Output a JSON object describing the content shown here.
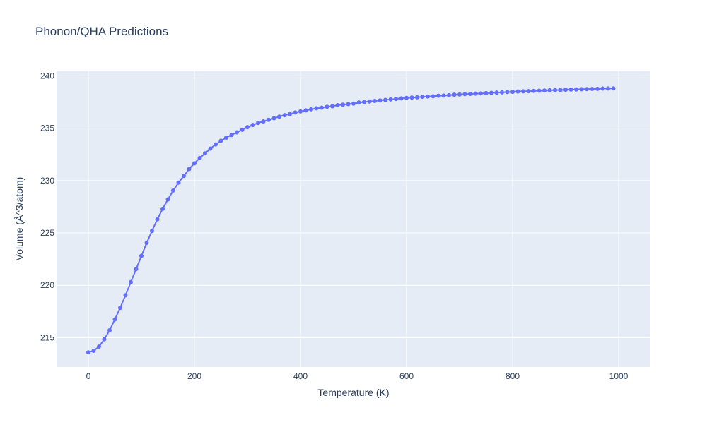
{
  "chart_data": {
    "type": "line",
    "title": "Phonon/QHA Predictions",
    "xlabel": "Temperature (K)",
    "ylabel": "Volume (Å^3/atom)",
    "xlim": [
      -60,
      1060
    ],
    "ylim": [
      212.2,
      240.5
    ],
    "xticks": [
      0,
      200,
      400,
      600,
      800,
      1000
    ],
    "yticks": [
      215,
      220,
      225,
      230,
      235,
      240
    ],
    "grid": true,
    "legend": "none",
    "series": [
      {
        "color": "#636efa",
        "mode": "lines+markers",
        "x": [
          0,
          10,
          20,
          30,
          40,
          50,
          60,
          70,
          80,
          90,
          100,
          110,
          120,
          130,
          140,
          150,
          160,
          170,
          180,
          190,
          200,
          210,
          220,
          230,
          240,
          250,
          260,
          270,
          280,
          290,
          300,
          310,
          320,
          330,
          340,
          350,
          360,
          370,
          380,
          390,
          400,
          410,
          420,
          430,
          440,
          450,
          460,
          470,
          480,
          490,
          500,
          510,
          520,
          530,
          540,
          550,
          560,
          570,
          580,
          590,
          600,
          610,
          620,
          630,
          640,
          650,
          660,
          670,
          680,
          690,
          700,
          710,
          720,
          730,
          740,
          750,
          760,
          770,
          780,
          790,
          800,
          810,
          820,
          830,
          840,
          850,
          860,
          870,
          880,
          890,
          900,
          910,
          920,
          930,
          940,
          950,
          960,
          970,
          980,
          990
        ],
        "y": [
          213.6,
          213.75,
          214.15,
          214.85,
          215.7,
          216.75,
          217.85,
          219.05,
          220.3,
          221.55,
          222.8,
          224.05,
          225.2,
          226.3,
          227.3,
          228.2,
          229.05,
          229.8,
          230.45,
          231.1,
          231.65,
          232.15,
          232.6,
          233.05,
          233.45,
          233.8,
          234.1,
          234.35,
          234.6,
          234.85,
          235.1,
          235.3,
          235.5,
          235.65,
          235.8,
          235.95,
          236.1,
          236.25,
          236.35,
          236.5,
          236.6,
          236.7,
          236.8,
          236.9,
          236.95,
          237.05,
          237.1,
          237.2,
          237.25,
          237.3,
          237.35,
          237.45,
          237.5,
          237.55,
          237.6,
          237.65,
          237.7,
          237.75,
          237.8,
          237.85,
          237.9,
          237.92,
          237.95,
          238.0,
          238.02,
          238.05,
          238.1,
          238.12,
          238.15,
          238.2,
          238.22,
          238.25,
          238.28,
          238.3,
          238.32,
          238.35,
          238.38,
          238.4,
          238.42,
          238.45,
          238.47,
          238.5,
          238.52,
          238.54,
          238.56,
          238.58,
          238.6,
          238.62,
          238.64,
          238.65,
          238.67,
          238.69,
          238.7,
          238.72,
          238.73,
          238.75,
          238.76,
          238.78,
          238.79,
          238.8
        ]
      }
    ]
  }
}
